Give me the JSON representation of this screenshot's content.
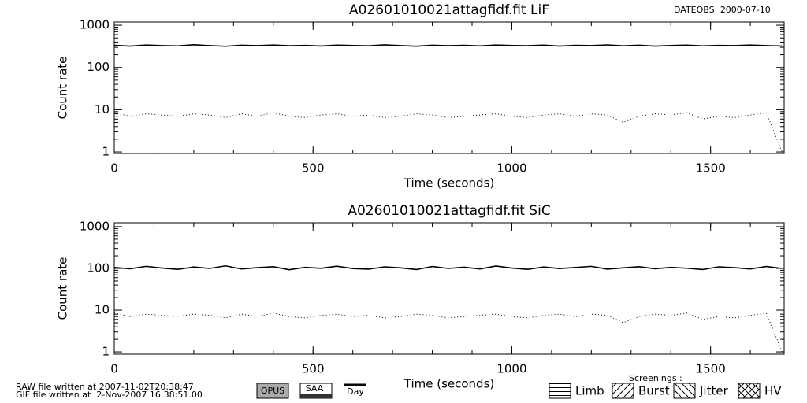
{
  "dateobs": "DATEOBS: 2000-07-10",
  "chart_data": [
    {
      "type": "line",
      "title": "A02601010021attagfidf.fit LiF",
      "xlabel": "Time (seconds)",
      "ylabel": "Count rate",
      "ylog": true,
      "xlim": [
        0,
        1685
      ],
      "ylim": [
        0.92,
        1190
      ],
      "xticks": [
        0,
        500,
        1000,
        1500
      ],
      "yticks": [
        1,
        10,
        100,
        1000
      ],
      "x": [
        0,
        40,
        80,
        120,
        160,
        200,
        240,
        280,
        320,
        360,
        400,
        440,
        480,
        520,
        560,
        600,
        640,
        680,
        720,
        760,
        800,
        840,
        880,
        920,
        960,
        1000,
        1040,
        1080,
        1120,
        1160,
        1200,
        1240,
        1280,
        1320,
        1360,
        1400,
        1440,
        1480,
        1520,
        1560,
        1600,
        1640,
        1680
      ],
      "series": [
        {
          "style": "solid",
          "color": "#000000",
          "values": [
            335,
            320,
            340,
            330,
            325,
            345,
            330,
            318,
            336,
            329,
            341,
            327,
            333,
            322,
            338,
            331,
            326,
            344,
            330,
            319,
            337,
            328,
            335,
            324,
            340,
            332,
            327,
            339,
            321,
            334,
            330,
            343,
            326,
            336,
            320,
            331,
            338,
            325,
            333,
            329,
            341,
            330,
            322
          ]
        },
        {
          "style": "dotted",
          "color": "#000000",
          "values": [
            8.5,
            7,
            8,
            7.5,
            7,
            8,
            7.5,
            6.5,
            8,
            7,
            8.5,
            7,
            6.5,
            7.5,
            8,
            7,
            7.5,
            6.5,
            7,
            8,
            7.5,
            6.5,
            7,
            7.5,
            8,
            7,
            6.5,
            7.5,
            8,
            7,
            8,
            7.5,
            5,
            7,
            8,
            7.5,
            8.5,
            6,
            7,
            6.5,
            7.5,
            8.5,
            1
          ]
        }
      ]
    },
    {
      "type": "line",
      "title": "A02601010021attagfidf.fit SiC",
      "xlabel": "Time (seconds)",
      "ylabel": "Count rate",
      "ylog": true,
      "xlim": [
        0,
        1685
      ],
      "ylim": [
        0.88,
        1240
      ],
      "xticks": [
        0,
        500,
        1000,
        1500
      ],
      "yticks": [
        1,
        10,
        100,
        1000
      ],
      "x": [
        0,
        40,
        80,
        120,
        160,
        200,
        240,
        280,
        320,
        360,
        400,
        440,
        480,
        520,
        560,
        600,
        640,
        680,
        720,
        760,
        800,
        840,
        880,
        920,
        960,
        1000,
        1040,
        1080,
        1120,
        1160,
        1200,
        1240,
        1280,
        1320,
        1360,
        1400,
        1440,
        1480,
        1520,
        1560,
        1600,
        1640,
        1680
      ],
      "series": [
        {
          "style": "solid",
          "color": "#000000",
          "values": [
            105,
            98,
            112,
            102,
            95,
            108,
            100,
            115,
            97,
            104,
            110,
            93,
            106,
            101,
            113,
            99,
            96,
            109,
            103,
            94,
            111,
            100,
            107,
            97,
            114,
            102,
            95,
            108,
            99,
            105,
            112,
            96,
            103,
            110,
            98,
            106,
            101,
            94,
            109,
            104,
            97,
            111,
            100
          ]
        },
        {
          "style": "dotted",
          "color": "#000000",
          "values": [
            8.5,
            7,
            8,
            7.5,
            7,
            8,
            7.5,
            6.5,
            8,
            7,
            8.5,
            7,
            6.5,
            7.5,
            8,
            7,
            7.5,
            6.5,
            7,
            8,
            7.5,
            6.5,
            7,
            7.5,
            8,
            7,
            6.5,
            7.5,
            8,
            7,
            8,
            7.5,
            5,
            7,
            8,
            7.5,
            8.5,
            6,
            7,
            6.5,
            7.5,
            8.5,
            1
          ]
        }
      ]
    }
  ],
  "footer": {
    "raw": "RAW file written at 2007-11-02T20:38:47",
    "gif": "GIF file written at  2-Nov-2007 16:38:51.00",
    "opus": "OPUS",
    "saa": "SAA",
    "day": "Day",
    "screenings": "Screenings :",
    "limb": "Limb",
    "burst": "Burst",
    "jitter": "Jitter",
    "hv": "HV"
  }
}
